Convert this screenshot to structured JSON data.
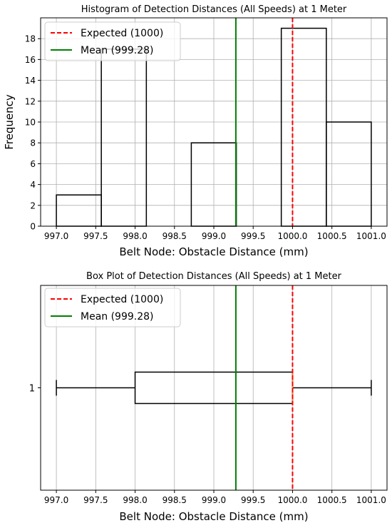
{
  "chart_data": [
    {
      "type": "histogram",
      "title": "Histogram of Detection Distances (All Speeds) at 1 Meter",
      "xlabel": "Belt Node: Obstacle Distance (mm)",
      "ylabel": "Frequency",
      "xlim": [
        996.8,
        1001.2
      ],
      "ylim": [
        0,
        20
      ],
      "xticks": [
        "997.0",
        "997.5",
        "998.0",
        "998.5",
        "999.0",
        "999.5",
        "1000.0",
        "1000.5",
        "1001.0"
      ],
      "yticks": [
        "0",
        "2",
        "4",
        "6",
        "8",
        "10",
        "12",
        "14",
        "16",
        "18"
      ],
      "grid": true,
      "bins": [
        {
          "x0": 997.0,
          "x1": 997.571,
          "count": 3
        },
        {
          "x0": 997.571,
          "x1": 998.143,
          "count": 17
        },
        {
          "x0": 998.143,
          "x1": 998.714,
          "count": 0
        },
        {
          "x0": 998.714,
          "x1": 999.286,
          "count": 8
        },
        {
          "x0": 999.286,
          "x1": 999.857,
          "count": 0
        },
        {
          "x0": 999.857,
          "x1": 1000.429,
          "count": 19
        },
        {
          "x0": 1000.429,
          "x1": 1001.0,
          "count": 10
        }
      ],
      "lines": [
        {
          "name": "Expected (1000)",
          "x": 1000.0,
          "color": "#ff0000",
          "style": "dashed"
        },
        {
          "name": "Mean (999.28)",
          "x": 999.28,
          "color": "#008000",
          "style": "solid"
        }
      ],
      "legend": "top-left"
    },
    {
      "type": "box",
      "title": "Box Plot of Detection Distances (All Speeds) at 1 Meter",
      "xlabel": "Belt Node: Obstacle Distance (mm)",
      "ylabel": "",
      "xlim": [
        996.8,
        1001.2
      ],
      "xticks": [
        "997.0",
        "997.5",
        "998.0",
        "998.5",
        "999.0",
        "999.5",
        "1000.0",
        "1000.5",
        "1001.0"
      ],
      "yticks": [
        "1"
      ],
      "grid": true,
      "box": {
        "label": "1",
        "whisker_low": 997.0,
        "q1": 998.0,
        "median": 1000.0,
        "q3": 1000.0,
        "whisker_high": 1001.0
      },
      "median_color": "#ff7f0e",
      "lines": [
        {
          "name": "Expected (1000)",
          "x": 1000.0,
          "color": "#ff0000",
          "style": "dashed"
        },
        {
          "name": "Mean (999.28)",
          "x": 999.28,
          "color": "#008000",
          "style": "solid"
        }
      ],
      "legend": "top-left"
    }
  ]
}
